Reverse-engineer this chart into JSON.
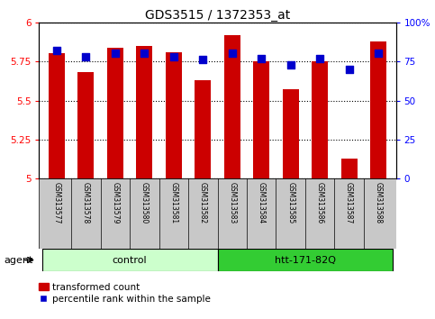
{
  "title": "GDS3515 / 1372353_at",
  "samples": [
    "GSM313577",
    "GSM313578",
    "GSM313579",
    "GSM313580",
    "GSM313581",
    "GSM313582",
    "GSM313583",
    "GSM313584",
    "GSM313585",
    "GSM313586",
    "GSM313587",
    "GSM313588"
  ],
  "transformed_count": [
    5.8,
    5.68,
    5.84,
    5.85,
    5.81,
    5.63,
    5.92,
    5.75,
    5.57,
    5.75,
    5.13,
    5.88
  ],
  "percentile_rank": [
    82,
    78,
    80,
    80,
    78,
    76,
    80,
    77,
    73,
    77,
    70,
    80
  ],
  "ylim_left": [
    5.0,
    6.0
  ],
  "ylim_right": [
    0,
    100
  ],
  "yticks_left": [
    5.0,
    5.25,
    5.5,
    5.75,
    6.0
  ],
  "yticks_right": [
    0,
    25,
    50,
    75,
    100
  ],
  "ytick_labels_right": [
    "0",
    "25",
    "50",
    "75",
    "100%"
  ],
  "bar_color": "#cc0000",
  "dot_color": "#0000cc",
  "background_plot": "#ffffff",
  "background_label": "#c8c8c8",
  "background_control": "#ccffcc",
  "background_htt": "#33cc33",
  "control_label": "control",
  "htt_label": "htt-171-82Q",
  "agent_label": "agent",
  "legend_bar_label": "transformed count",
  "legend_dot_label": "percentile rank within the sample",
  "n_control": 6,
  "n_htt": 6,
  "bar_width": 0.55,
  "dot_size": 28,
  "title_fontsize": 10,
  "tick_fontsize": 7.5,
  "xlabel_fontsize": 6,
  "label_fontsize": 8,
  "legend_fontsize": 7.5
}
